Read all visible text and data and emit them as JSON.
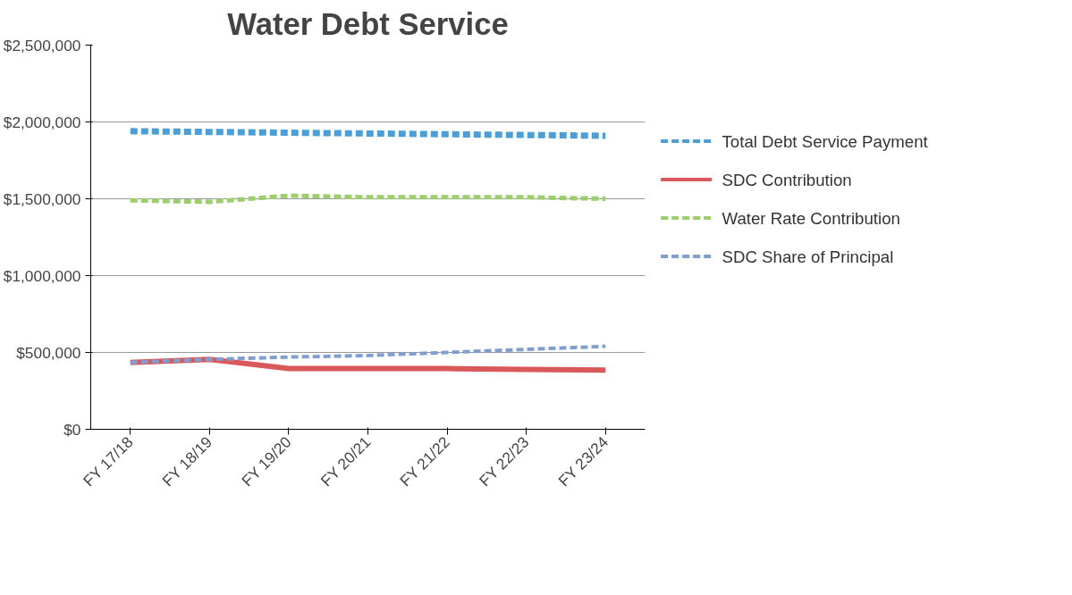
{
  "chart_data": {
    "type": "line",
    "title": "Water Debt Service",
    "categories": [
      "FY 17/18",
      "FY 18/19",
      "FY 19/20",
      "FY 20/21",
      "FY 21/22",
      "FY 22/23",
      "FY 23/24"
    ],
    "series": [
      {
        "name": "Total Debt Service Payment",
        "color": "#4a9fd8",
        "line_style": "dashed",
        "values": [
          1940000,
          1935000,
          1930000,
          1925000,
          1920000,
          1915000,
          1910000
        ]
      },
      {
        "name": "SDC Contribution",
        "color": "#d9595a",
        "line_style": "solid",
        "values": [
          435000,
          455000,
          395000,
          395000,
          395000,
          390000,
          385000
        ]
      },
      {
        "name": "Water Rate Contribution",
        "color": "#9bcf6b",
        "line_style": "dashed",
        "values": [
          1490000,
          1480000,
          1520000,
          1510000,
          1510000,
          1510000,
          1500000
        ]
      },
      {
        "name": "SDC Share of Principal",
        "color": "#7f9fd0",
        "line_style": "dashed",
        "values": [
          435000,
          455000,
          470000,
          480000,
          500000,
          520000,
          540000
        ]
      }
    ],
    "ylim": [
      0,
      2500000
    ],
    "yticks": [
      {
        "value": 0,
        "label": "$0"
      },
      {
        "value": 500000,
        "label": "$500,000"
      },
      {
        "value": 1000000,
        "label": "$1,000,000"
      },
      {
        "value": 1500000,
        "label": "$1,500,000"
      },
      {
        "value": 2000000,
        "label": "$2,000,000"
      },
      {
        "value": 2500000,
        "label": "$2,500,000"
      }
    ],
    "grid": "y",
    "legend": "right",
    "marker": "none"
  }
}
